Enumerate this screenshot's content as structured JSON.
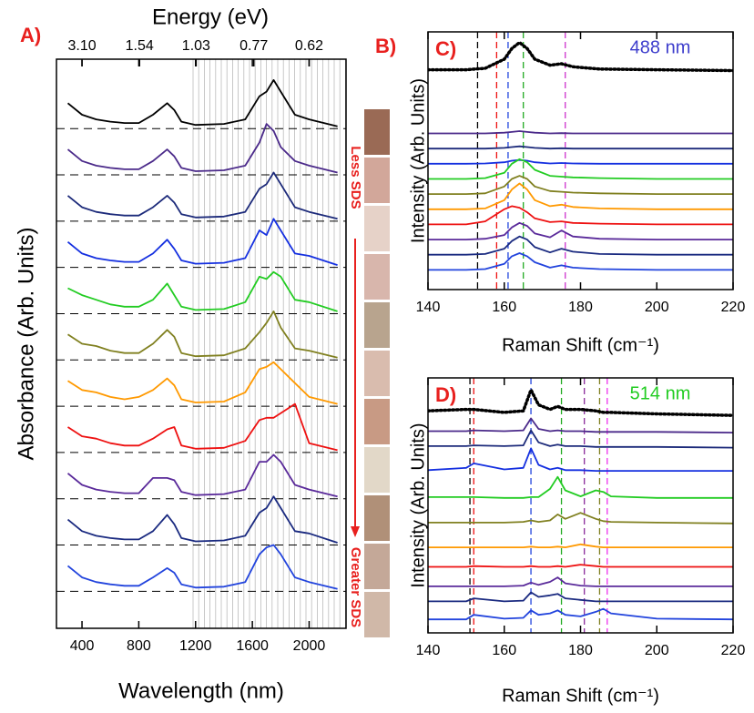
{
  "chart_data": [
    {
      "type": "line",
      "panel_label": "A)",
      "x2_label": "Energy (eV)",
      "x_label": "Wavelength (nm)",
      "y_label": "Absorbance (Arb. Units)",
      "annotations": [
        "Less SDS",
        "Greater SDS"
      ],
      "xlim": [
        220,
        2260
      ],
      "xticks": [
        400,
        800,
        1200,
        1600,
        2000
      ],
      "x2ticks": [
        {
          "value": 3.1,
          "label": "3.10"
        },
        1.54,
        1.03,
        0.77,
        0.62
      ],
      "ylim": [
        0,
        12.3
      ],
      "hlines": [
        0.8,
        1.8,
        2.8,
        3.8,
        4.8,
        5.8,
        6.8,
        7.8,
        8.8,
        9.8,
        10.8
      ],
      "x": [
        300,
        400,
        500,
        600,
        700,
        800,
        900,
        1000,
        1050,
        1100,
        1200,
        1400,
        1550,
        1650,
        1700,
        1750,
        1800,
        1900,
        2000,
        2200
      ],
      "series": [
        {
          "color": "#000000",
          "values": [
            11.35,
            11.1,
            11.0,
            10.95,
            10.92,
            10.92,
            11.1,
            11.35,
            11.2,
            10.95,
            10.88,
            10.9,
            11.0,
            11.5,
            11.6,
            11.85,
            11.6,
            11.1,
            11.0,
            10.85
          ]
        },
        {
          "color": "#4b2a8a",
          "values": [
            10.35,
            10.1,
            10.0,
            9.95,
            9.92,
            9.92,
            10.1,
            10.35,
            10.2,
            9.95,
            9.88,
            9.9,
            10.0,
            10.5,
            10.9,
            10.75,
            10.4,
            10.1,
            10.0,
            9.85
          ]
        },
        {
          "color": "#1c2a7a",
          "values": [
            9.35,
            9.1,
            9.0,
            8.95,
            8.92,
            8.92,
            9.1,
            9.35,
            9.2,
            8.95,
            8.88,
            8.9,
            9.0,
            9.5,
            9.6,
            9.85,
            9.6,
            9.1,
            9.0,
            8.85
          ]
        },
        {
          "color": "#1530e0",
          "values": [
            8.35,
            8.1,
            8.0,
            7.95,
            7.92,
            7.92,
            8.1,
            8.4,
            8.2,
            7.95,
            7.88,
            7.9,
            8.0,
            8.6,
            8.5,
            8.85,
            8.6,
            8.1,
            8.05,
            7.85
          ]
        },
        {
          "color": "#22cc22",
          "values": [
            7.35,
            7.2,
            7.1,
            7.0,
            6.95,
            6.95,
            7.1,
            7.45,
            7.2,
            6.95,
            6.88,
            6.9,
            7.05,
            7.6,
            7.55,
            7.7,
            7.6,
            7.1,
            7.05,
            6.85
          ]
        },
        {
          "color": "#808020",
          "values": [
            6.35,
            6.15,
            6.1,
            6.0,
            5.95,
            5.95,
            6.15,
            6.45,
            6.3,
            5.95,
            5.88,
            5.9,
            6.05,
            6.4,
            6.6,
            6.85,
            6.5,
            6.05,
            6.0,
            5.85
          ]
        },
        {
          "color": "#ff9900",
          "values": [
            5.35,
            5.15,
            5.1,
            5.0,
            4.95,
            5.0,
            5.15,
            5.4,
            5.25,
            4.95,
            4.88,
            4.9,
            5.1,
            5.6,
            5.65,
            5.75,
            5.6,
            5.3,
            5.0,
            4.85
          ]
        },
        {
          "color": "#ee1111",
          "values": [
            4.35,
            4.15,
            4.1,
            4.0,
            3.95,
            3.95,
            4.1,
            4.3,
            4.35,
            3.95,
            3.88,
            3.9,
            4.05,
            4.5,
            4.55,
            4.55,
            4.65,
            4.85,
            4.0,
            3.85
          ]
        },
        {
          "color": "#5a2a9a",
          "values": [
            3.35,
            3.1,
            3.0,
            2.95,
            2.92,
            2.92,
            3.25,
            3.25,
            3.2,
            2.95,
            2.88,
            2.9,
            3.0,
            3.6,
            3.6,
            3.75,
            3.6,
            3.1,
            3.0,
            2.85
          ]
        },
        {
          "color": "#1a2a80",
          "values": [
            2.35,
            2.1,
            2.0,
            1.95,
            1.92,
            1.92,
            2.1,
            2.45,
            2.25,
            1.95,
            1.88,
            1.9,
            2.0,
            2.5,
            2.6,
            2.85,
            2.6,
            2.1,
            2.05,
            1.85
          ]
        },
        {
          "color": "#2244dd",
          "values": [
            1.35,
            1.1,
            1.0,
            0.95,
            0.92,
            0.92,
            1.1,
            1.3,
            1.2,
            0.95,
            0.88,
            0.9,
            1.0,
            1.6,
            1.75,
            1.8,
            1.6,
            1.1,
            1.0,
            0.85
          ]
        }
      ]
    },
    {
      "type": "line",
      "panel_label": "C)",
      "title": "488 nm",
      "title_color": "#3d3dcc",
      "x_label": "Raman Shift (cm⁻¹)",
      "y_label": "Intensity (Arb. Units)",
      "xlim": [
        140,
        220
      ],
      "xticks": [
        140,
        160,
        180,
        200,
        220
      ],
      "ylim": [
        0,
        17
      ],
      "vlines": [
        {
          "x": 153,
          "color": "#000000"
        },
        {
          "x": 158,
          "color": "#ee1111"
        },
        {
          "x": 161,
          "color": "#2244dd"
        },
        {
          "x": 165,
          "color": "#22aa22"
        },
        {
          "x": 176,
          "color": "#cc33cc"
        }
      ],
      "x": [
        140,
        150,
        155,
        160,
        162,
        164,
        166,
        168,
        172,
        175,
        178,
        185,
        200,
        220
      ],
      "series": [
        {
          "color": "#000000",
          "line_style": "dotted",
          "values": [
            14.5,
            14.5,
            14.6,
            15.2,
            15.9,
            16.3,
            15.9,
            15.2,
            14.8,
            14.9,
            14.7,
            14.55,
            14.5,
            14.45
          ]
        },
        {
          "color": "#4b2a8a",
          "values": [
            10.3,
            10.3,
            10.3,
            10.35,
            10.4,
            10.45,
            10.4,
            10.35,
            10.3,
            10.32,
            10.3,
            10.3,
            10.3,
            10.3
          ]
        },
        {
          "color": "#1c2a7a",
          "values": [
            9.3,
            9.3,
            9.3,
            9.35,
            9.4,
            9.45,
            9.4,
            9.35,
            9.3,
            9.32,
            9.3,
            9.3,
            9.3,
            9.3
          ]
        },
        {
          "color": "#1530e0",
          "values": [
            8.3,
            8.3,
            8.32,
            8.4,
            8.5,
            8.55,
            8.5,
            8.4,
            8.32,
            8.35,
            8.32,
            8.3,
            8.3,
            8.3
          ]
        },
        {
          "color": "#22cc22",
          "values": [
            7.3,
            7.3,
            7.35,
            7.7,
            8.3,
            8.6,
            8.4,
            7.9,
            7.5,
            7.45,
            7.4,
            7.35,
            7.3,
            7.3
          ]
        },
        {
          "color": "#808020",
          "values": [
            6.3,
            6.3,
            6.35,
            6.8,
            7.3,
            7.5,
            7.3,
            6.8,
            6.5,
            6.45,
            6.4,
            6.35,
            6.3,
            6.3
          ]
        },
        {
          "color": "#ff9900",
          "values": [
            5.3,
            5.3,
            5.35,
            5.9,
            6.6,
            7.0,
            6.6,
            5.9,
            5.5,
            5.6,
            5.45,
            5.35,
            5.3,
            5.3
          ]
        },
        {
          "color": "#ee1111",
          "values": [
            4.3,
            4.3,
            4.5,
            5.3,
            5.5,
            5.4,
            5.1,
            4.7,
            4.45,
            4.5,
            4.4,
            4.35,
            4.3,
            4.3
          ]
        },
        {
          "color": "#5a2a9a",
          "values": [
            3.3,
            3.3,
            3.35,
            3.6,
            4.1,
            4.4,
            4.2,
            3.7,
            3.45,
            3.9,
            3.5,
            3.35,
            3.3,
            3.3
          ]
        },
        {
          "color": "#1a2a80",
          "values": [
            2.3,
            2.3,
            2.35,
            2.7,
            3.2,
            3.5,
            3.3,
            2.8,
            2.45,
            2.7,
            2.5,
            2.35,
            2.3,
            2.3
          ]
        },
        {
          "color": "#2244dd",
          "values": [
            1.3,
            1.3,
            1.35,
            1.7,
            2.2,
            2.4,
            2.2,
            1.8,
            1.45,
            1.6,
            1.45,
            1.35,
            1.3,
            1.3
          ]
        }
      ]
    },
    {
      "type": "line",
      "panel_label": "D)",
      "title": "514 nm",
      "title_color": "#22cc22",
      "x_label": "Raman Shift (cm⁻¹)",
      "y_label": "Intensity (Arb. Units)",
      "xlim": [
        140,
        220
      ],
      "xticks": [
        140,
        160,
        180,
        200,
        220
      ],
      "ylim": [
        0,
        17
      ],
      "vlines": [
        {
          "x": 151,
          "color": "#000000"
        },
        {
          "x": 152,
          "color": "#ee1111"
        },
        {
          "x": 167,
          "color": "#2244dd"
        },
        {
          "x": 175,
          "color": "#22aa22"
        },
        {
          "x": 181,
          "color": "#8a2a9a"
        },
        {
          "x": 185,
          "color": "#808020"
        },
        {
          "x": 187,
          "color": "#ee33ee"
        }
      ],
      "x": [
        140,
        150,
        152,
        160,
        165,
        167,
        169,
        172,
        174,
        176,
        180,
        184,
        186,
        188,
        200,
        220
      ],
      "series": [
        {
          "color": "#000000",
          "line_style": "dotted",
          "values": [
            14.8,
            14.9,
            14.9,
            14.7,
            14.8,
            16.2,
            15.2,
            14.9,
            15.1,
            14.9,
            14.9,
            14.8,
            14.7,
            14.7,
            14.6,
            14.5
          ]
        },
        {
          "color": "#4b2a8a",
          "values": [
            13.45,
            13.45,
            13.5,
            13.45,
            13.5,
            14.3,
            13.6,
            13.45,
            13.5,
            13.45,
            13.45,
            13.4,
            13.4,
            13.4,
            13.4,
            13.35
          ]
        },
        {
          "color": "#1c2a7a",
          "values": [
            12.45,
            12.45,
            12.5,
            12.45,
            12.5,
            13.5,
            12.7,
            12.45,
            12.55,
            12.45,
            12.45,
            12.4,
            12.4,
            12.4,
            12.4,
            12.35
          ]
        },
        {
          "color": "#1530e0",
          "values": [
            10.85,
            11.0,
            11.3,
            10.9,
            11.0,
            12.3,
            11.2,
            10.9,
            11.0,
            10.85,
            10.85,
            10.8,
            10.8,
            10.8,
            10.8,
            10.8
          ]
        },
        {
          "color": "#22cc22",
          "values": [
            9.05,
            9.05,
            9.05,
            9.0,
            9.0,
            9.05,
            9.05,
            9.6,
            10.4,
            9.5,
            9.1,
            9.5,
            9.4,
            9.1,
            9.0,
            9.0
          ]
        },
        {
          "color": "#808020",
          "values": [
            7.35,
            7.35,
            7.35,
            7.35,
            7.4,
            7.5,
            7.4,
            7.5,
            7.9,
            7.6,
            8.0,
            7.6,
            7.45,
            7.4,
            7.35,
            7.3
          ]
        },
        {
          "color": "#ff9900",
          "values": [
            5.7,
            5.7,
            5.7,
            5.7,
            5.7,
            5.75,
            5.7,
            5.7,
            5.75,
            5.7,
            5.9,
            5.75,
            5.7,
            5.7,
            5.7,
            5.7
          ]
        },
        {
          "color": "#ee1111",
          "values": [
            4.4,
            4.4,
            4.45,
            4.4,
            4.4,
            4.45,
            4.4,
            4.4,
            4.45,
            4.4,
            4.55,
            4.45,
            4.4,
            4.4,
            4.4,
            4.4
          ]
        },
        {
          "color": "#5a2a9a",
          "values": [
            3.1,
            3.1,
            3.1,
            3.1,
            3.15,
            3.35,
            3.2,
            3.4,
            3.7,
            3.3,
            3.15,
            3.1,
            3.1,
            3.1,
            3.1,
            3.1
          ]
        },
        {
          "color": "#1a2a80",
          "values": [
            2.1,
            2.1,
            2.3,
            2.1,
            2.15,
            2.7,
            2.4,
            2.5,
            2.6,
            2.3,
            2.2,
            2.1,
            2.1,
            2.1,
            2.1,
            2.1
          ]
        },
        {
          "color": "#2244dd",
          "values": [
            0.9,
            0.9,
            1.2,
            0.95,
            1.0,
            1.5,
            1.2,
            1.3,
            1.5,
            1.2,
            1.1,
            1.4,
            1.6,
            1.3,
            0.95,
            0.9
          ]
        }
      ]
    }
  ],
  "photo_panel": {
    "label": "B)"
  }
}
